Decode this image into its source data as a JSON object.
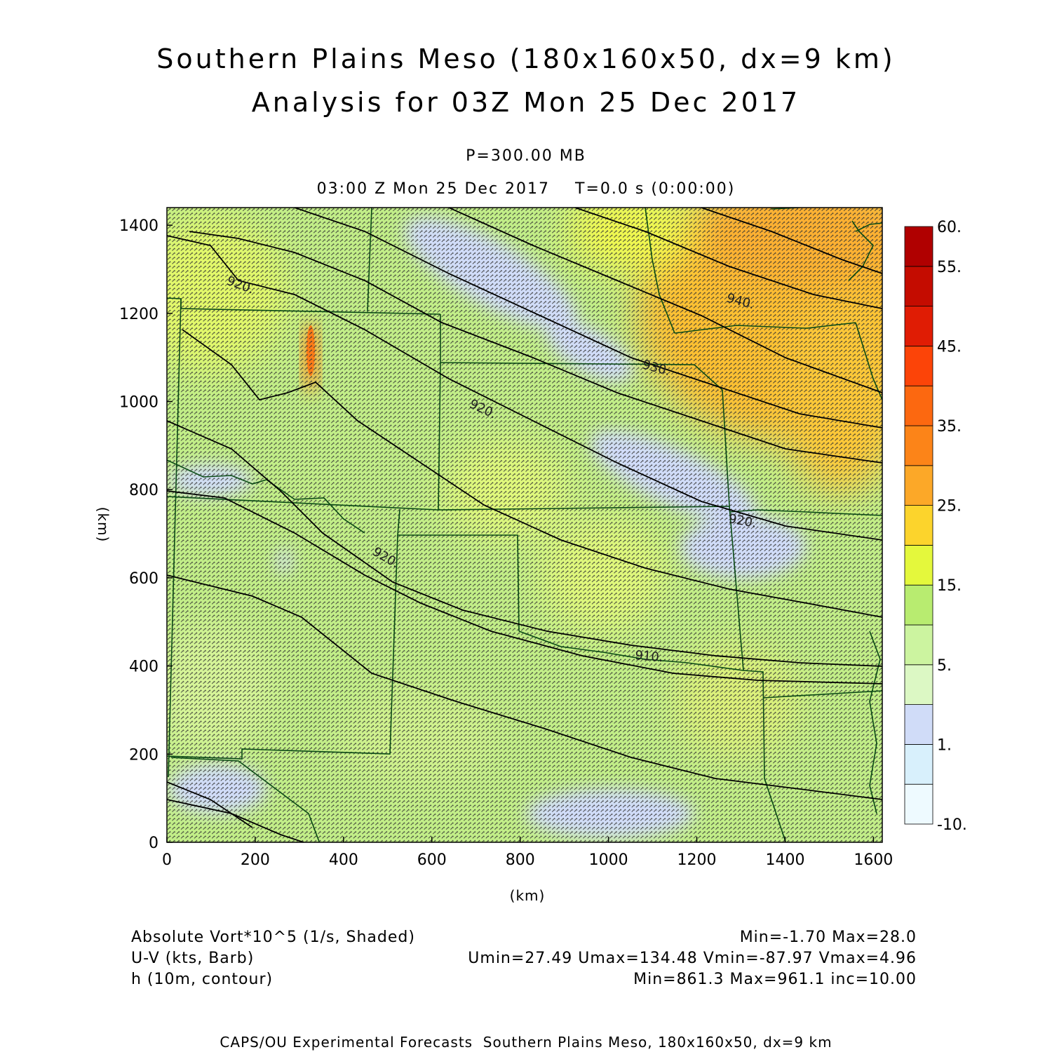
{
  "title": {
    "line1": "Southern Plains Meso (180x160x50, dx=9 km)",
    "line2": "Analysis for 03Z Mon 25 Dec 2017"
  },
  "subtitle": {
    "level": "P=300.00 MB",
    "valid": "03:00 Z Mon 25 Dec 2017    T=0.0 s (0:00:00)"
  },
  "axes": {
    "x_label": "(km)",
    "y_label": "(km)",
    "x_range": [
      0,
      1620
    ],
    "y_range": [
      0,
      1440
    ],
    "x_ticks": [
      0,
      200,
      400,
      600,
      800,
      1000,
      1200,
      1400,
      1600
    ],
    "y_ticks": [
      0,
      200,
      400,
      600,
      800,
      1000,
      1200,
      1400
    ]
  },
  "colorbar": {
    "levels": [
      "-10.",
      "1.",
      "5.",
      "15.",
      "25.",
      "35.",
      "45.",
      "55.",
      "60."
    ],
    "colors": [
      "#eefaff",
      "#d8f0fc",
      "#d0dcf8",
      "#dcf8c4",
      "#ccf4a0",
      "#b8ec70",
      "#e4f83c",
      "#fcd42c",
      "#fca828",
      "#fc8418",
      "#fc6810",
      "#fc4408",
      "#e01c04",
      "#c40c00",
      "#b00000"
    ]
  },
  "contours": {
    "labels": [
      "920.",
      "920.",
      "920.",
      "930.",
      "940.",
      "920.",
      "910."
    ]
  },
  "legend": {
    "field1": "Absolute Vort*10^5 (1/s, Shaded)",
    "field1_stats": "Min=-1.70 Max=28.0",
    "field2": "U-V (kts, Barb)",
    "field2_stats": "Umin=27.49 Umax=134.48 Vmin=-87.97 Vmax=4.96",
    "field3": "h (10m, contour)",
    "field3_stats": "Min=861.3 Max=961.1 inc=10.00"
  },
  "footer": "CAPS/OU Experimental Forecasts  Southern Plains Meso, 180x160x50, dx=9 km"
}
